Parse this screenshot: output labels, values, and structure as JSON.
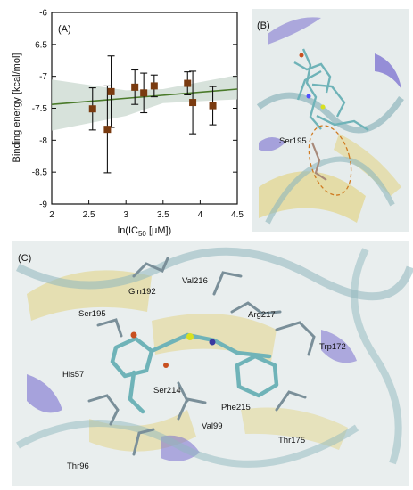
{
  "panels": {
    "a_label": "(A)",
    "b_label": "(B)",
    "c_label": "(C)"
  },
  "colors": {
    "marker": "#7a3b10",
    "fit_line": "#4a7a2a",
    "band": "#c9d8cf",
    "helix": "#7a6fd0",
    "sheet": "#e3d68a",
    "coil": "#8fb7bd",
    "ligand": "#6fb3b8"
  },
  "chart_data": {
    "type": "scatter",
    "xlabel_pre": "ln(IC",
    "xlabel_sub": "50",
    "xlabel_post": " [μM])",
    "ylabel": "Binding energy [kcal/mol]",
    "xlim": [
      2,
      4.5
    ],
    "ylim": [
      -9,
      -6
    ],
    "xticks": [
      "2",
      "2.5",
      "3",
      "3.5",
      "4",
      "4.5"
    ],
    "yticks": [
      "-6",
      "-6.5",
      "-7",
      "-7.5",
      "-8",
      "-8.5",
      "-9"
    ],
    "points": [
      {
        "x": 2.55,
        "y": -7.51,
        "err": 0.33
      },
      {
        "x": 2.75,
        "y": -7.83,
        "err": 0.68
      },
      {
        "x": 2.8,
        "y": -7.24,
        "err": 0.56
      },
      {
        "x": 3.12,
        "y": -7.17,
        "err": 0.27
      },
      {
        "x": 3.24,
        "y": -7.26,
        "err": 0.31
      },
      {
        "x": 3.38,
        "y": -7.15,
        "err": 0.17
      },
      {
        "x": 3.83,
        "y": -7.11,
        "err": 0.18
      },
      {
        "x": 3.9,
        "y": -7.41,
        "err": 0.49
      },
      {
        "x": 4.17,
        "y": -7.46,
        "err": 0.3
      }
    ],
    "fit": {
      "x": [
        2,
        4.5
      ],
      "y": [
        -7.44,
        -7.2
      ]
    },
    "band_upper": [
      -7.05,
      -7.22,
      -7.2,
      -6.98
    ],
    "band_lower": [
      -7.85,
      -7.62,
      -7.42,
      -7.36
    ],
    "band_x": [
      2,
      3.0,
      3.5,
      4.5
    ],
    "grid": false
  },
  "panel_b": {
    "residue": "Ser195"
  },
  "panel_c": {
    "residues": [
      "Gln192",
      "Val216",
      "Ser195",
      "Arg217",
      "Trp172",
      "His57",
      "Ser214",
      "Phe215",
      "Val99",
      "Thr175",
      "Thr96"
    ]
  }
}
